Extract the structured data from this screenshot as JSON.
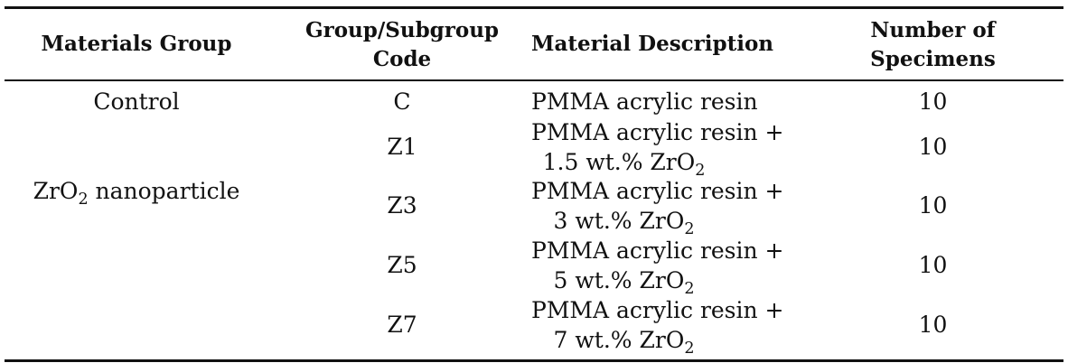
{
  "table": {
    "headers": {
      "materials_group": "Materials Group",
      "code_line1": "Group/Subgroup",
      "code_line2": "Code",
      "description": "Material Description",
      "specimens_line1": "Number of",
      "specimens_line2": "Specimens"
    },
    "groups": {
      "control": "Control",
      "zro2_prefix": "ZrO",
      "zro2_sub": "2",
      "zro2_suffix": " nanoparticle"
    },
    "rows": [
      {
        "code": "C",
        "desc_line1": "PMMA acrylic resin",
        "desc_line2_prefix": "",
        "desc_sub": "",
        "specimens": "10"
      },
      {
        "code": "Z1",
        "desc_line1": "PMMA acrylic resin +",
        "desc_line2_prefix": "1.5 wt.% ZrO",
        "desc_sub": "2",
        "specimens": "10"
      },
      {
        "code": "Z3",
        "desc_line1": "PMMA acrylic resin +",
        "desc_line2_prefix": "3 wt.% ZrO",
        "desc_sub": "2",
        "specimens": "10"
      },
      {
        "code": "Z5",
        "desc_line1": "PMMA acrylic resin +",
        "desc_line2_prefix": "5 wt.% ZrO",
        "desc_sub": "2",
        "specimens": "10"
      },
      {
        "code": "Z7",
        "desc_line1": "PMMA acrylic resin +",
        "desc_line2_prefix": "7 wt.% ZrO",
        "desc_sub": "2",
        "specimens": "10"
      }
    ]
  }
}
